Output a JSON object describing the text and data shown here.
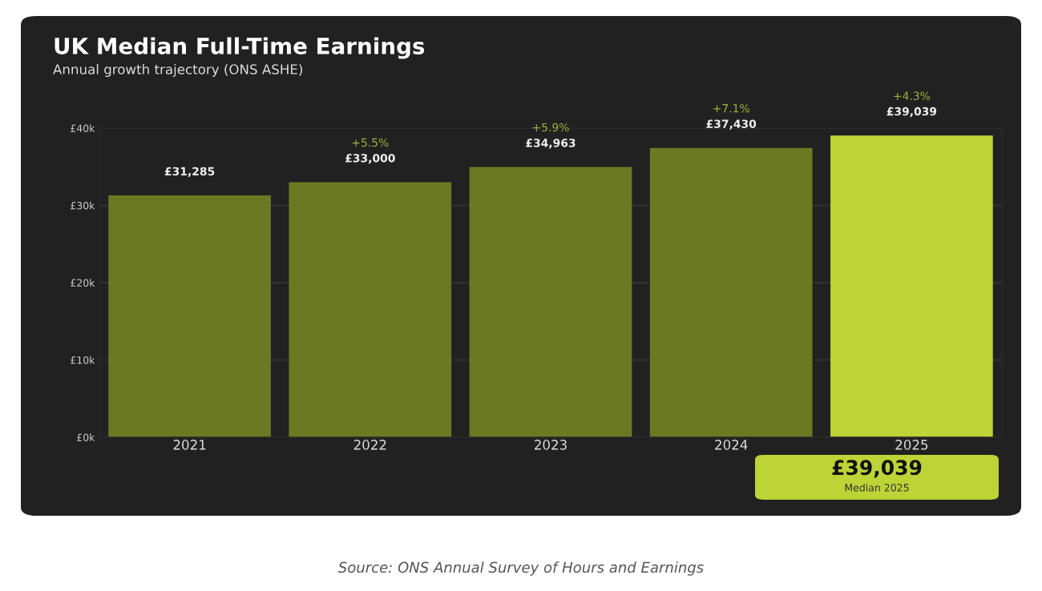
{
  "chart_data": {
    "type": "bar",
    "title": "UK Median Full-Time Earnings",
    "subtitle": "Annual growth trajectory (ONS ASHE)",
    "categories": [
      "2021",
      "2022",
      "2023",
      "2024",
      "2025"
    ],
    "values": [
      31285,
      33000,
      34963,
      37430,
      39039
    ],
    "colors": [
      "#6b7a22",
      "#6b7a22",
      "#6b7a22",
      "#6b7a22",
      "#bcd435"
    ],
    "value_labels": [
      "£31,285",
      "£33,000",
      "£34,963",
      "£37,430",
      "£39,039"
    ],
    "ylim": [
      0,
      40000
    ],
    "yticks": [
      {
        "value": 0,
        "label": "£0k"
      },
      {
        "value": 10000,
        "label": "£10k"
      },
      {
        "value": 20000,
        "label": "£20k"
      },
      {
        "value": 30000,
        "label": "£30k"
      },
      {
        "value": 40000,
        "label": "£40k"
      }
    ],
    "grid": "y",
    "annotations": [
      "+5.5%",
      "+5.9%",
      "+7.1%",
      "+4.3%",
      "£39,039",
      "Median 2025",
      "Source: ONS Annual Survey of Hours and Earnings"
    ]
  }
}
